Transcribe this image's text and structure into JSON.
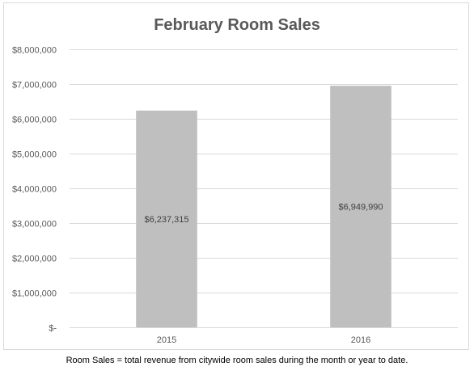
{
  "chart_data": {
    "type": "bar",
    "title": "February Room Sales",
    "xlabel": "",
    "ylabel": "",
    "categories": [
      "2015",
      "2016"
    ],
    "series": [
      {
        "values": [
          6237315,
          6949990
        ],
        "data_labels": [
          "$6,237,315",
          "$6,949,990"
        ]
      }
    ],
    "ylim": [
      0,
      8000000
    ],
    "y_ticks": [
      0,
      1000000,
      2000000,
      3000000,
      4000000,
      5000000,
      6000000,
      7000000,
      8000000
    ],
    "y_tick_labels": [
      "$-",
      "$1,000,000",
      "$2,000,000",
      "$3,000,000",
      "$4,000,000",
      "$5,000,000",
      "$6,000,000",
      "$7,000,000",
      "$8,000,000"
    ],
    "grid": true,
    "legend": "none",
    "bar_color": "#bfbfbf",
    "grid_color": "#d9d9d9"
  },
  "footnote": "Room Sales = total revenue from citywide room sales during the month or year to date."
}
